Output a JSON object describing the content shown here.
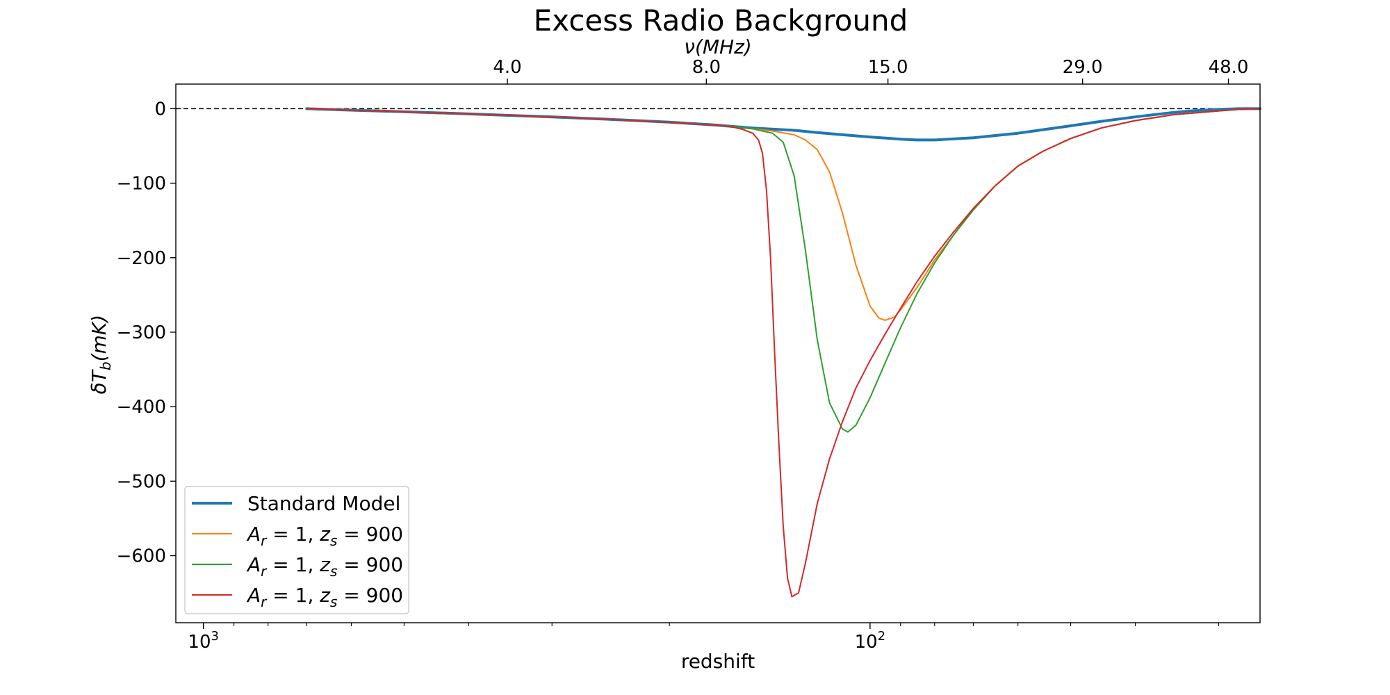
{
  "chart_data": {
    "type": "line",
    "title": "Excess Radio Background",
    "xlabel": "redshift",
    "ylabel_main": "δT",
    "ylabel_sub": "b",
    "ylabel_unit": "(mK)",
    "top_axis_label": "ν(MHz)",
    "x_axis_reversed": true,
    "x_scale": "log",
    "xlim": [
      1100,
      26
    ],
    "ylim": [
      -690,
      33
    ],
    "x_tick_labels": [
      {
        "value": 1000,
        "base": "10",
        "exp": "3"
      },
      {
        "value": 100,
        "base": "10",
        "exp": "2"
      }
    ],
    "top_ticks": [
      {
        "label": "4.0",
        "z": 350
      },
      {
        "label": "8.0",
        "z": 176
      },
      {
        "label": "15.0",
        "z": 94
      },
      {
        "label": "29.0",
        "z": 48
      },
      {
        "label": "48.0",
        "z": 29
      }
    ],
    "y_ticks": [
      0,
      -100,
      -200,
      -300,
      -400,
      -500,
      -600
    ],
    "y_tick_labels": [
      "0",
      "−100",
      "−200",
      "−300",
      "−400",
      "−500",
      "−600"
    ],
    "reference_line_y": 0,
    "legend_position": "lower-left",
    "series": [
      {
        "name": "Standard Model",
        "color": "#1f77b4",
        "x": [
          700,
          600,
          500,
          400,
          300,
          250,
          200,
          170,
          150,
          130,
          120,
          110,
          100,
          90,
          85,
          80,
          70,
          60,
          50,
          45,
          40,
          35,
          33,
          30,
          28,
          26
        ],
        "y": [
          0,
          -2,
          -4,
          -7,
          -11,
          -14,
          -18,
          -22,
          -26,
          -29,
          -32,
          -35,
          -38,
          -41,
          -42,
          -42,
          -39,
          -33,
          -23,
          -17,
          -11,
          -5,
          -3,
          -1,
          0,
          0
        ]
      },
      {
        "name": "A_r = 1, z_s = 900",
        "color": "#ff7f0e",
        "x": [
          700,
          400,
          250,
          170,
          150,
          140,
          130,
          125,
          120,
          115,
          110,
          105,
          100,
          97,
          95,
          92,
          90,
          85,
          80,
          75,
          70,
          65,
          60,
          55,
          50,
          45,
          40,
          35,
          30,
          28,
          26
        ],
        "y": [
          0,
          -7,
          -14,
          -22,
          -27,
          -30,
          -35,
          -42,
          -55,
          -85,
          -140,
          -210,
          -265,
          -281,
          -284,
          -280,
          -270,
          -240,
          -203,
          -170,
          -135,
          -104,
          -77,
          -57,
          -40,
          -26,
          -16,
          -8,
          -3,
          -1,
          0
        ]
      },
      {
        "name": "A_r = 1, z_s = 900",
        "color": "#2ca02c",
        "x": [
          700,
          400,
          250,
          170,
          150,
          145,
          140,
          135,
          130,
          125,
          120,
          115,
          110,
          108,
          105,
          100,
          95,
          90,
          85,
          80,
          75,
          70,
          65,
          60,
          55,
          50,
          45,
          40,
          35,
          30,
          28,
          26
        ],
        "y": [
          0,
          -7,
          -14,
          -22,
          -27,
          -30,
          -33,
          -45,
          -90,
          -190,
          -310,
          -395,
          -430,
          -434,
          -425,
          -388,
          -342,
          -294,
          -248,
          -207,
          -170,
          -136,
          -104,
          -77,
          -57,
          -40,
          -26,
          -16,
          -8,
          -3,
          -1,
          0
        ]
      },
      {
        "name": "A_r = 1, z_s = 900",
        "color": "#d62728",
        "x": [
          700,
          400,
          250,
          170,
          160,
          155,
          150,
          147,
          145,
          143,
          141,
          139,
          137,
          135,
          133,
          131,
          128,
          125,
          120,
          115,
          110,
          105,
          100,
          95,
          90,
          85,
          80,
          75,
          70,
          65,
          60,
          55,
          50,
          45,
          40,
          35,
          30,
          28,
          26
        ],
        "y": [
          0,
          -7,
          -14,
          -22,
          -25,
          -28,
          -33,
          -42,
          -60,
          -110,
          -200,
          -330,
          -450,
          -560,
          -630,
          -655,
          -650,
          -610,
          -530,
          -470,
          -420,
          -375,
          -338,
          -303,
          -268,
          -232,
          -198,
          -166,
          -134,
          -104,
          -77,
          -57,
          -40,
          -26,
          -16,
          -8,
          -3,
          -1,
          0
        ]
      }
    ]
  }
}
